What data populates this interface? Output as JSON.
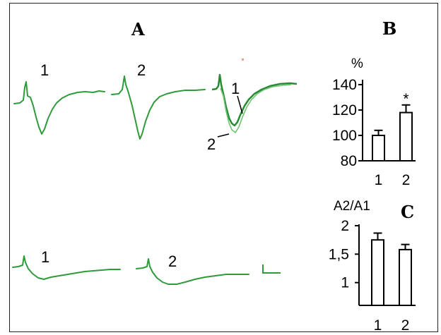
{
  "panels": {
    "a": {
      "letter": "A"
    },
    "b": {
      "letter": "B"
    },
    "c": {
      "letter": "C"
    }
  },
  "traces": {
    "top_labels": [
      "1",
      "2",
      "1",
      "2"
    ],
    "bottom_labels": [
      "1",
      "2"
    ],
    "color": "#2e9b3a",
    "overlay_second_color": "#6cc46f"
  },
  "chart_data": [
    {
      "panel": "B",
      "type": "bar",
      "categories": [
        "1",
        "2"
      ],
      "values": [
        100,
        118
      ],
      "errors": [
        4,
        6
      ],
      "significance": [
        "",
        "*"
      ],
      "ylabel": "%",
      "ylim": [
        80,
        140
      ],
      "yticks": [
        80,
        100,
        120,
        140
      ],
      "ytick_labels": [
        "80",
        "100",
        "120",
        "140"
      ]
    },
    {
      "panel": "C",
      "type": "bar",
      "categories": [
        "1",
        "2"
      ],
      "values": [
        1.75,
        1.58
      ],
      "errors": [
        0.12,
        0.09
      ],
      "ylabel": "A2/A1",
      "ylim": [
        0.6,
        2.0
      ],
      "yticks": [
        1,
        1.5,
        2
      ],
      "ytick_labels": [
        "1",
        "1,5",
        "2"
      ]
    }
  ]
}
